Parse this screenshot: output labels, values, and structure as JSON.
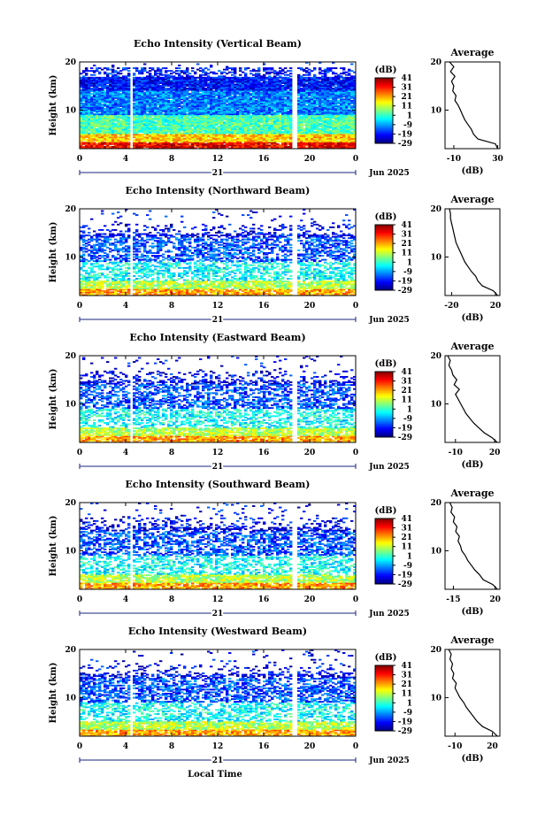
{
  "figure": {
    "bottom_xlabel": "Local Time",
    "date_label": "Jun 2025",
    "day_label": "21",
    "height_axis_label": "Height (km)",
    "colorbar_unit": "(dB)",
    "colorbar_ticks": [
      "41",
      "31",
      "21",
      "11",
      "1",
      "-9",
      "-19",
      "-29"
    ],
    "colorbar_range": [
      -29,
      41
    ],
    "avg_panel_title": "Average",
    "avg_xlabel": "(dB)"
  },
  "chart_data": [
    {
      "type": "heatmap",
      "title": "Echo Intensity (Vertical Beam)",
      "ylabel": "Height (km)",
      "xlabel": "Local Time",
      "x_ticks": [
        "0",
        "4",
        "8",
        "12",
        "16",
        "20",
        "0"
      ],
      "y_ticks": [
        "20",
        "10"
      ],
      "xlim": [
        0,
        24
      ],
      "ylim": [
        2,
        20
      ],
      "x_gaps_hours": [
        4.5,
        18.6
      ],
      "avg_profile": {
        "title": "Average",
        "xlabel": "(dB)",
        "x_ticks": [
          "-10",
          "30"
        ],
        "xlim": [
          -18,
          32
        ],
        "height_km": [
          2,
          3,
          4,
          5,
          6,
          7,
          8,
          9,
          10,
          11,
          12,
          13,
          14,
          15,
          16,
          17,
          18,
          19,
          20
        ],
        "db": [
          30,
          28,
          12,
          8,
          6,
          3,
          0,
          -2,
          -4,
          -6,
          -9,
          -8,
          -11,
          -10,
          -12,
          -9,
          -13,
          -10,
          -14
        ]
      }
    },
    {
      "type": "heatmap",
      "title": "Echo Intensity (Northward Beam)",
      "ylabel": "Height (km)",
      "xlabel": "Local Time",
      "x_ticks": [
        "0",
        "4",
        "8",
        "12",
        "16",
        "20",
        "0"
      ],
      "y_ticks": [
        "20",
        "10"
      ],
      "xlim": [
        0,
        24
      ],
      "ylim": [
        2,
        20
      ],
      "x_gaps_hours": [
        4.5,
        18.6
      ],
      "avg_profile": {
        "title": "Average",
        "xlabel": "(dB)",
        "x_ticks": [
          "-20",
          "20"
        ],
        "xlim": [
          -26,
          24
        ],
        "height_km": [
          2,
          3,
          4,
          5,
          6,
          7,
          8,
          9,
          10,
          11,
          12,
          13,
          14,
          15,
          16,
          17,
          18,
          19,
          20
        ],
        "db": [
          22,
          18,
          8,
          4,
          2,
          -2,
          -5,
          -8,
          -10,
          -12,
          -14,
          -16,
          -17,
          -18,
          -19,
          -20,
          -21,
          -21,
          -22
        ]
      }
    },
    {
      "type": "heatmap",
      "title": "Echo Intensity (Eastward Beam)",
      "ylabel": "Height (km)",
      "xlabel": "Local Time",
      "x_ticks": [
        "0",
        "4",
        "8",
        "12",
        "16",
        "20",
        "0"
      ],
      "y_ticks": [
        "20",
        "10"
      ],
      "xlim": [
        0,
        24
      ],
      "ylim": [
        2,
        20
      ],
      "x_gaps_hours": [
        4.5,
        18.6
      ],
      "avg_profile": {
        "title": "Average",
        "xlabel": "(dB)",
        "x_ticks": [
          "-10",
          "20"
        ],
        "xlim": [
          -18,
          24
        ],
        "height_km": [
          2,
          3,
          4,
          5,
          6,
          7,
          8,
          9,
          10,
          11,
          12,
          13,
          14,
          15,
          16,
          17,
          18,
          19,
          20
        ],
        "db": [
          22,
          18,
          12,
          8,
          4,
          1,
          -2,
          -4,
          -6,
          -8,
          -10,
          -7,
          -11,
          -9,
          -12,
          -13,
          -15,
          -14,
          -16
        ]
      }
    },
    {
      "type": "heatmap",
      "title": "Echo Intensity (Southward Beam)",
      "ylabel": "Height (km)",
      "xlabel": "Local Time",
      "x_ticks": [
        "0",
        "4",
        "8",
        "12",
        "16",
        "20",
        "0"
      ],
      "y_ticks": [
        "20",
        "10"
      ],
      "xlim": [
        0,
        24
      ],
      "ylim": [
        2,
        20
      ],
      "x_gaps_hours": [
        4.5,
        18.6
      ],
      "avg_profile": {
        "title": "Average",
        "xlabel": "(dB)",
        "x_ticks": [
          "-15",
          "20"
        ],
        "xlim": [
          -22,
          24
        ],
        "height_km": [
          2,
          3,
          4,
          5,
          6,
          7,
          8,
          9,
          10,
          11,
          12,
          13,
          14,
          15,
          16,
          17,
          18,
          19,
          20
        ],
        "db": [
          22,
          18,
          10,
          7,
          3,
          0,
          -3,
          -5,
          -8,
          -9,
          -11,
          -10,
          -13,
          -12,
          -15,
          -14,
          -17,
          -16,
          -18
        ]
      }
    },
    {
      "type": "heatmap",
      "title": "Echo Intensity (Westward Beam)",
      "ylabel": "Height (km)",
      "xlabel": "Local Time",
      "x_ticks": [
        "0",
        "4",
        "8",
        "12",
        "16",
        "20",
        "0"
      ],
      "y_ticks": [
        "20",
        "10"
      ],
      "xlim": [
        0,
        24
      ],
      "ylim": [
        2,
        20
      ],
      "x_gaps_hours": [
        4.5,
        18.6
      ],
      "avg_profile": {
        "title": "Average",
        "xlabel": "(dB)",
        "x_ticks": [
          "-10",
          "20"
        ],
        "xlim": [
          -18,
          26
        ],
        "height_km": [
          2,
          3,
          4,
          5,
          6,
          7,
          8,
          9,
          10,
          11,
          12,
          13,
          14,
          15,
          16,
          17,
          18,
          19,
          20
        ],
        "db": [
          24,
          20,
          12,
          8,
          5,
          2,
          -1,
          -3,
          -6,
          -8,
          -10,
          -9,
          -12,
          -11,
          -13,
          -12,
          -14,
          -13,
          -15
        ]
      }
    }
  ]
}
